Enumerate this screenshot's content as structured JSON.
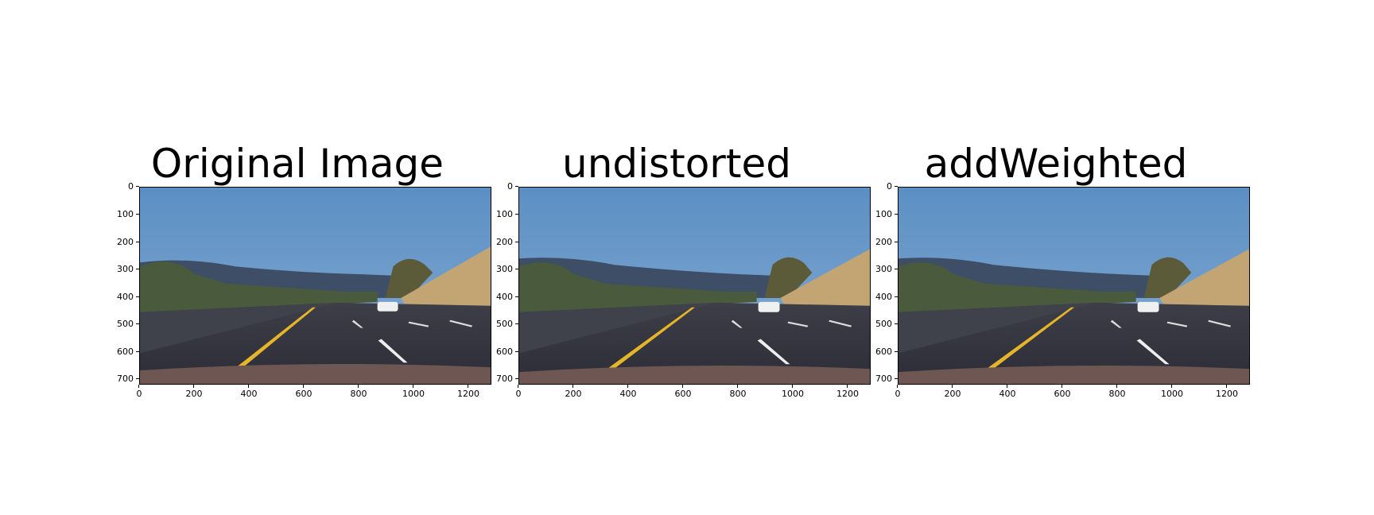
{
  "figure": {
    "panels": [
      {
        "title": "Original Image",
        "image_description_icon": "road-scene-photo"
      },
      {
        "title": "undistorted",
        "image_description_icon": "road-scene-photo"
      },
      {
        "title": "addWeighted",
        "image_description_icon": "road-scene-photo"
      }
    ],
    "x_ticks": [
      "0",
      "200",
      "400",
      "600",
      "800",
      "1000",
      "1200"
    ],
    "y_ticks": [
      "0",
      "100",
      "200",
      "300",
      "400",
      "500",
      "600",
      "700"
    ],
    "x_range": [
      0,
      1280
    ],
    "y_range": [
      0,
      720
    ]
  }
}
